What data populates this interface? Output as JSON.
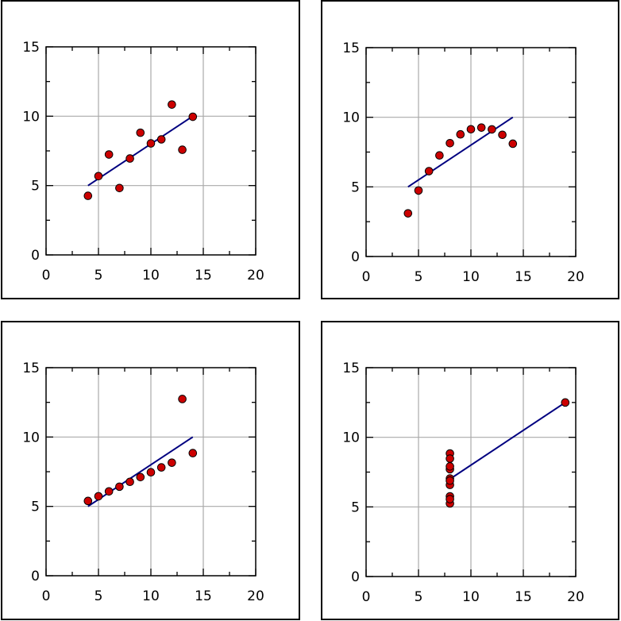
{
  "chart_data": [
    {
      "type": "scatter",
      "xlim": [
        0,
        20
      ],
      "ylim": [
        0,
        15
      ],
      "xticks": [
        "0",
        "5",
        "10",
        "15",
        "20"
      ],
      "yticks": [
        "0",
        "5",
        "10",
        "15"
      ],
      "grid": true,
      "series": [
        {
          "x": [
            4,
            5,
            6,
            7,
            8,
            9,
            10,
            11,
            12,
            13,
            14
          ],
          "y": [
            4.26,
            5.68,
            7.24,
            4.82,
            6.95,
            8.81,
            8.04,
            8.33,
            10.84,
            7.58,
            9.96
          ]
        }
      ],
      "fit_line": {
        "x": [
          4,
          14
        ],
        "y": [
          5.0,
          10.0
        ]
      }
    },
    {
      "type": "scatter",
      "xlim": [
        0,
        20
      ],
      "ylim": [
        0,
        15
      ],
      "xticks": [
        "0",
        "5",
        "10",
        "15",
        "20"
      ],
      "yticks": [
        "0",
        "5",
        "10",
        "15"
      ],
      "grid": true,
      "series": [
        {
          "x": [
            4,
            5,
            6,
            7,
            8,
            9,
            10,
            11,
            12,
            13,
            14
          ],
          "y": [
            3.1,
            4.74,
            6.13,
            7.26,
            8.14,
            8.77,
            9.14,
            9.26,
            9.13,
            8.74,
            8.1
          ]
        }
      ],
      "fit_line": {
        "x": [
          4,
          14
        ],
        "y": [
          5.0,
          10.0
        ]
      }
    },
    {
      "type": "scatter",
      "xlim": [
        0,
        20
      ],
      "ylim": [
        0,
        15
      ],
      "xticks": [
        "0",
        "5",
        "10",
        "15",
        "20"
      ],
      "yticks": [
        "0",
        "5",
        "10",
        "15"
      ],
      "grid": true,
      "series": [
        {
          "x": [
            4,
            5,
            6,
            7,
            8,
            9,
            10,
            11,
            12,
            13,
            14
          ],
          "y": [
            5.39,
            5.73,
            6.08,
            6.42,
            6.77,
            7.11,
            7.46,
            7.81,
            8.15,
            12.74,
            8.84
          ]
        }
      ],
      "fit_line": {
        "x": [
          4,
          14
        ],
        "y": [
          5.0,
          10.0
        ]
      }
    },
    {
      "type": "scatter",
      "xlim": [
        0,
        20
      ],
      "ylim": [
        0,
        15
      ],
      "xticks": [
        "0",
        "5",
        "10",
        "15",
        "20"
      ],
      "yticks": [
        "0",
        "5",
        "10",
        "15"
      ],
      "grid": true,
      "series": [
        {
          "x": [
            8,
            8,
            8,
            8,
            8,
            8,
            8,
            8,
            8,
            8,
            19
          ],
          "y": [
            6.58,
            5.76,
            7.71,
            8.84,
            8.47,
            7.04,
            5.25,
            5.56,
            7.91,
            6.89,
            12.5
          ]
        }
      ],
      "fit_line": {
        "x": [
          8,
          19
        ],
        "y": [
          7.0,
          12.5
        ]
      }
    }
  ],
  "colors": {
    "marker_fill": "#cc0000",
    "marker_stroke": "#000000",
    "fit_line": "#000080",
    "grid": "#aaaaaa",
    "axes": "#000000",
    "panel_border": "#000000"
  }
}
